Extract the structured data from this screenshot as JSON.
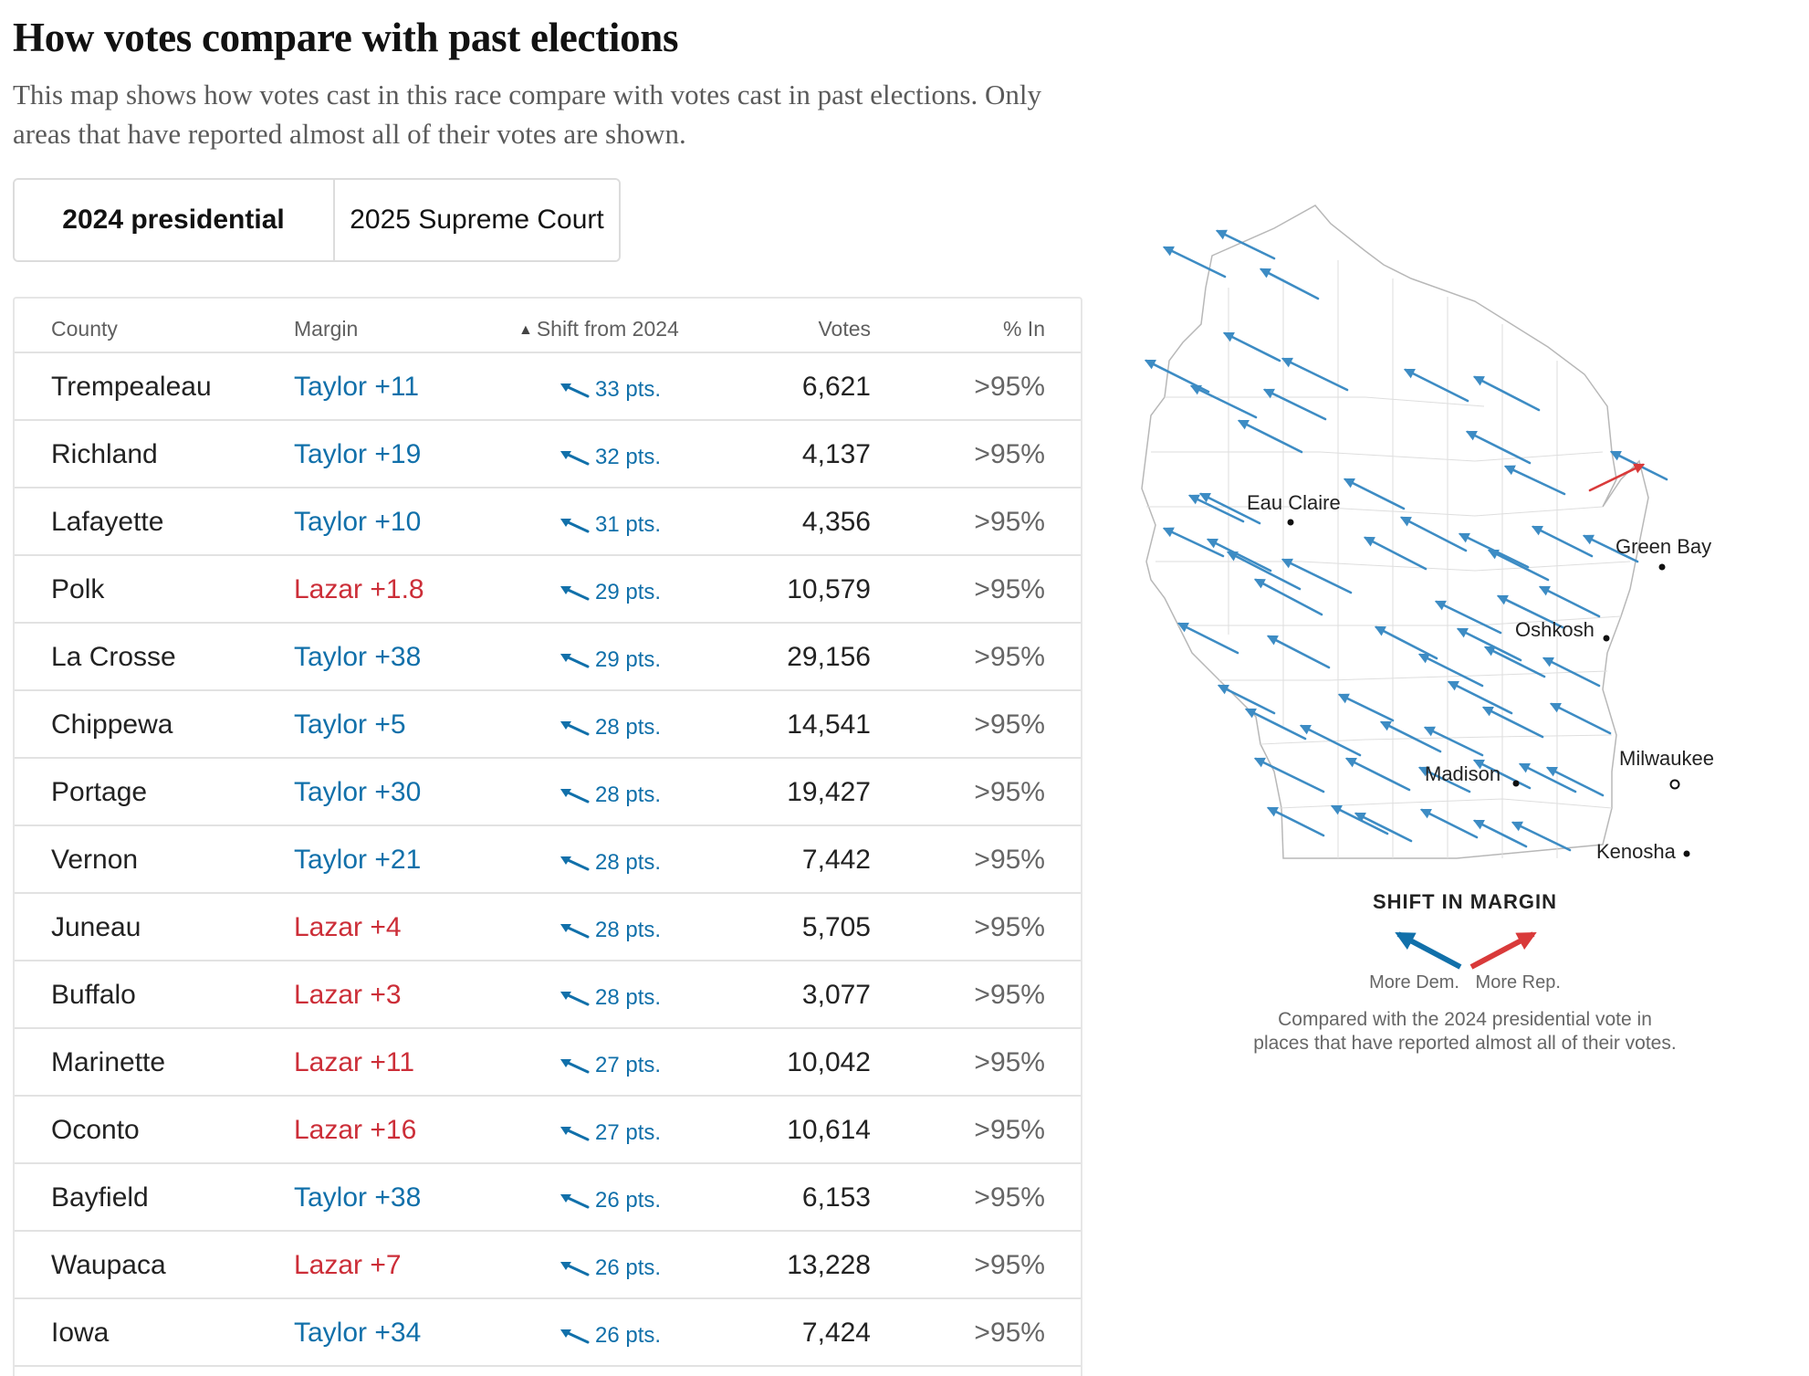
{
  "header": {
    "title": "How votes compare with past elections",
    "subtitle": "This map shows how votes cast in this race compare with votes cast in past elections. Only areas that have reported almost all of their votes are shown."
  },
  "tabs": [
    {
      "label": "2024 presidential",
      "active": true
    },
    {
      "label": "2025 Supreme Court",
      "active": false
    }
  ],
  "table": {
    "columns": {
      "county": "County",
      "margin": "Margin",
      "shift": "Shift from 2024",
      "votes": "Votes",
      "pct_in": "% In"
    },
    "rows": [
      {
        "county": "Trempealeau",
        "margin": "Taylor +11",
        "party": "dem",
        "shift": "33 pts.",
        "votes": "6,621",
        "pct_in": ">95%"
      },
      {
        "county": "Richland",
        "margin": "Taylor +19",
        "party": "dem",
        "shift": "32 pts.",
        "votes": "4,137",
        "pct_in": ">95%"
      },
      {
        "county": "Lafayette",
        "margin": "Taylor +10",
        "party": "dem",
        "shift": "31 pts.",
        "votes": "4,356",
        "pct_in": ">95%"
      },
      {
        "county": "Polk",
        "margin": "Lazar +1.8",
        "party": "rep",
        "shift": "29 pts.",
        "votes": "10,579",
        "pct_in": ">95%"
      },
      {
        "county": "La Crosse",
        "margin": "Taylor +38",
        "party": "dem",
        "shift": "29 pts.",
        "votes": "29,156",
        "pct_in": ">95%"
      },
      {
        "county": "Chippewa",
        "margin": "Taylor +5",
        "party": "dem",
        "shift": "28 pts.",
        "votes": "14,541",
        "pct_in": ">95%"
      },
      {
        "county": "Portage",
        "margin": "Taylor +30",
        "party": "dem",
        "shift": "28 pts.",
        "votes": "19,427",
        "pct_in": ">95%"
      },
      {
        "county": "Vernon",
        "margin": "Taylor +21",
        "party": "dem",
        "shift": "28 pts.",
        "votes": "7,442",
        "pct_in": ">95%"
      },
      {
        "county": "Juneau",
        "margin": "Lazar +4",
        "party": "rep",
        "shift": "28 pts.",
        "votes": "5,705",
        "pct_in": ">95%"
      },
      {
        "county": "Buffalo",
        "margin": "Lazar +3",
        "party": "rep",
        "shift": "28 pts.",
        "votes": "3,077",
        "pct_in": ">95%"
      },
      {
        "county": "Marinette",
        "margin": "Lazar +11",
        "party": "rep",
        "shift": "27 pts.",
        "votes": "10,042",
        "pct_in": ">95%"
      },
      {
        "county": "Oconto",
        "margin": "Lazar +16",
        "party": "rep",
        "shift": "27 pts.",
        "votes": "10,614",
        "pct_in": ">95%"
      },
      {
        "county": "Bayfield",
        "margin": "Taylor +38",
        "party": "dem",
        "shift": "26 pts.",
        "votes": "6,153",
        "pct_in": ">95%"
      },
      {
        "county": "Waupaca",
        "margin": "Lazar +7",
        "party": "rep",
        "shift": "26 pts.",
        "votes": "13,228",
        "pct_in": ">95%"
      },
      {
        "county": "Iowa",
        "margin": "Taylor +34",
        "party": "dem",
        "shift": "26 pts.",
        "votes": "7,424",
        "pct_in": ">95%"
      }
    ]
  },
  "map": {
    "cities": [
      "Eau Claire",
      "Green Bay",
      "Oshkosh",
      "Madison",
      "Milwaukee",
      "Kenosha"
    ]
  },
  "legend": {
    "title": "SHIFT IN MARGIN",
    "more_dem": "More Dem.",
    "more_rep": "More Rep.",
    "note_line1": "Compared with the 2024 presidential vote in",
    "note_line2": "places that have reported almost all of their votes."
  },
  "colors": {
    "dem": "#1170aa",
    "rep": "#cc2e38",
    "dem_arrow": "#3d8cc4",
    "rep_arrow": "#d93a3a"
  }
}
